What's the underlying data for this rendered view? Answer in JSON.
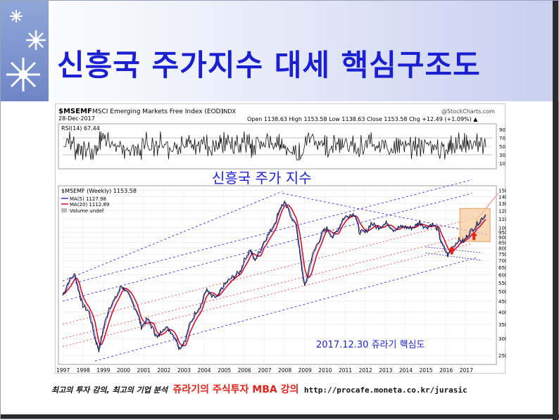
{
  "slide": {
    "title": "신흥국 주가지수 대세 핵심구조도",
    "footer_left": "최고의 투자 강의, 최고의 기업 분석",
    "footer_mid": "쥬라기의 주식투자 MBA 강의",
    "footer_url": "http://procafe.moneta.co.kr/jurasic"
  },
  "colors": {
    "title": "#1a1fd0",
    "price": "#111111",
    "ma5": "#2a2adf",
    "ma20": "#d0102a",
    "channel_blue": "#3b3bd9",
    "channel_red": "#e05050",
    "highlight": "#f6c99a",
    "arrow": "#e8201a"
  },
  "chart_data": {
    "type": "line",
    "header": {
      "symbol": "$MSEMF",
      "name": "MSCI Emerging Markets Free Index (EOD)",
      "exchange": "INDX",
      "source": "@StockCharts.com",
      "date": "28-Dec-2017",
      "quote": "Open 1138.63  High 1153.58  Low 1138.63  Close 1153.58  Chg +12.49 (+1.09%) ▲"
    },
    "rsi_panel": {
      "label": "RSI(14) 67.44",
      "ticks": [
        "90",
        "70",
        "50",
        "30",
        "10"
      ],
      "ylim": [
        0,
        100
      ]
    },
    "price_panel": {
      "label": "$MSEMF (Weekly) 1153.58",
      "legend": [
        "MA(5) 1127.98",
        "MA(20) 1112.89",
        "Volume undef"
      ],
      "y_ticks": [
        "1500",
        "1400",
        "1300",
        "1200",
        "1100",
        "1000",
        "950",
        "900",
        "850",
        "800",
        "750",
        "700",
        "650",
        "600",
        "550",
        "500",
        "450",
        "400",
        "350",
        "300",
        "250"
      ],
      "scale": "log",
      "ylim": [
        230,
        1550
      ]
    },
    "x_ticks": [
      "1997",
      "1998",
      "1999",
      "2000",
      "2001",
      "2002",
      "2003",
      "2004",
      "2005",
      "2006",
      "2007",
      "2008",
      "2009",
      "2010",
      "2011",
      "2012",
      "2013",
      "2014",
      "2015",
      "2016",
      "2017"
    ],
    "xlim": [
      1997,
      2018.3
    ],
    "series": [
      {
        "name": "$MSEMF",
        "x": [
          1997.0,
          1997.3,
          1997.6,
          1997.8,
          1998.0,
          1998.3,
          1998.6,
          1998.8,
          1999.0,
          1999.3,
          1999.6,
          1999.9,
          2000.1,
          2000.4,
          2000.7,
          2000.9,
          2001.2,
          2001.5,
          2001.7,
          2002.0,
          2002.3,
          2002.6,
          2002.8,
          2003.1,
          2003.3,
          2003.6,
          2003.9,
          2004.1,
          2004.4,
          2004.7,
          2004.9,
          2005.2,
          2005.5,
          2005.8,
          2006.0,
          2006.3,
          2006.5,
          2006.8,
          2007.0,
          2007.3,
          2007.6,
          2007.8,
          2008.0,
          2008.3,
          2008.6,
          2008.8,
          2009.0,
          2009.3,
          2009.6,
          2009.9,
          2010.1,
          2010.4,
          2010.7,
          2010.9,
          2011.2,
          2011.5,
          2011.7,
          2012.0,
          2012.3,
          2012.6,
          2012.8,
          2013.1,
          2013.4,
          2013.7,
          2013.9,
          2014.2,
          2014.5,
          2014.7,
          2015.0,
          2015.3,
          2015.6,
          2015.8,
          2016.1,
          2016.3,
          2016.6,
          2016.9,
          2017.1,
          2017.4,
          2017.7,
          2017.99
        ],
        "values": [
          480,
          560,
          600,
          500,
          430,
          400,
          300,
          265,
          330,
          420,
          460,
          530,
          510,
          450,
          400,
          340,
          370,
          330,
          300,
          340,
          330,
          300,
          270,
          300,
          350,
          400,
          440,
          510,
          470,
          470,
          520,
          560,
          590,
          620,
          700,
          790,
          700,
          780,
          870,
          960,
          1100,
          1250,
          1300,
          1150,
          1000,
          700,
          520,
          700,
          830,
          950,
          990,
          900,
          1000,
          1100,
          1150,
          1160,
          960,
          940,
          1050,
          1000,
          1020,
          1050,
          980,
          1000,
          1010,
          990,
          1020,
          1060,
          1000,
          1040,
          980,
          830,
          740,
          800,
          870,
          860,
          930,
          1000,
          1080,
          1153.58
        ]
      }
    ],
    "annotations": [
      "신흥국 주가 지수",
      "2017.12.30 쥬라기 핵심도"
    ]
  }
}
